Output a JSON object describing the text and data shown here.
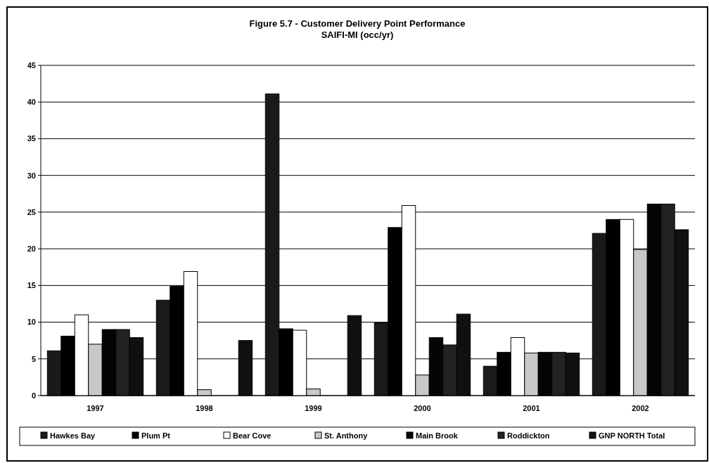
{
  "chart_data": {
    "type": "bar",
    "title": "Figure 5.7 - Customer Delivery Point Performance",
    "subtitle": "SAIFI-MI (occ/yr)",
    "categories": [
      "1997",
      "1998",
      "1999",
      "2000",
      "2001",
      "2002"
    ],
    "series": [
      {
        "name": "Hawkes Bay",
        "color": "#1a1a1a",
        "values": [
          6.1,
          13.0,
          41.1,
          9.9,
          4.0,
          22.1
        ]
      },
      {
        "name": "Plum Pt",
        "color": "#000000",
        "values": [
          8.1,
          14.9,
          9.1,
          22.9,
          5.9,
          24.0
        ]
      },
      {
        "name": "Bear Cove",
        "color": "#ffffff",
        "values": [
          11.0,
          16.9,
          8.9,
          25.9,
          7.9,
          24.0
        ]
      },
      {
        "name": "St. Anthony",
        "color": "#c8c8c8",
        "values": [
          7.0,
          0.8,
          0.9,
          2.8,
          5.8,
          19.9
        ]
      },
      {
        "name": "Main Brook",
        "color": "#050505",
        "values": [
          9.0,
          null,
          null,
          7.9,
          5.9,
          26.1
        ]
      },
      {
        "name": "Roddickton",
        "color": "#222222",
        "values": [
          9.0,
          null,
          null,
          6.9,
          5.9,
          26.1
        ]
      },
      {
        "name": "GNP NORTH Total",
        "color": "#101010",
        "values": [
          7.9,
          7.5,
          10.9,
          11.1,
          5.8,
          22.6
        ]
      }
    ],
    "ylim": [
      0,
      45
    ],
    "yticks": [
      0,
      5,
      10,
      15,
      20,
      25,
      30,
      35,
      40,
      45
    ],
    "grid": "y",
    "legend": "bottom"
  }
}
